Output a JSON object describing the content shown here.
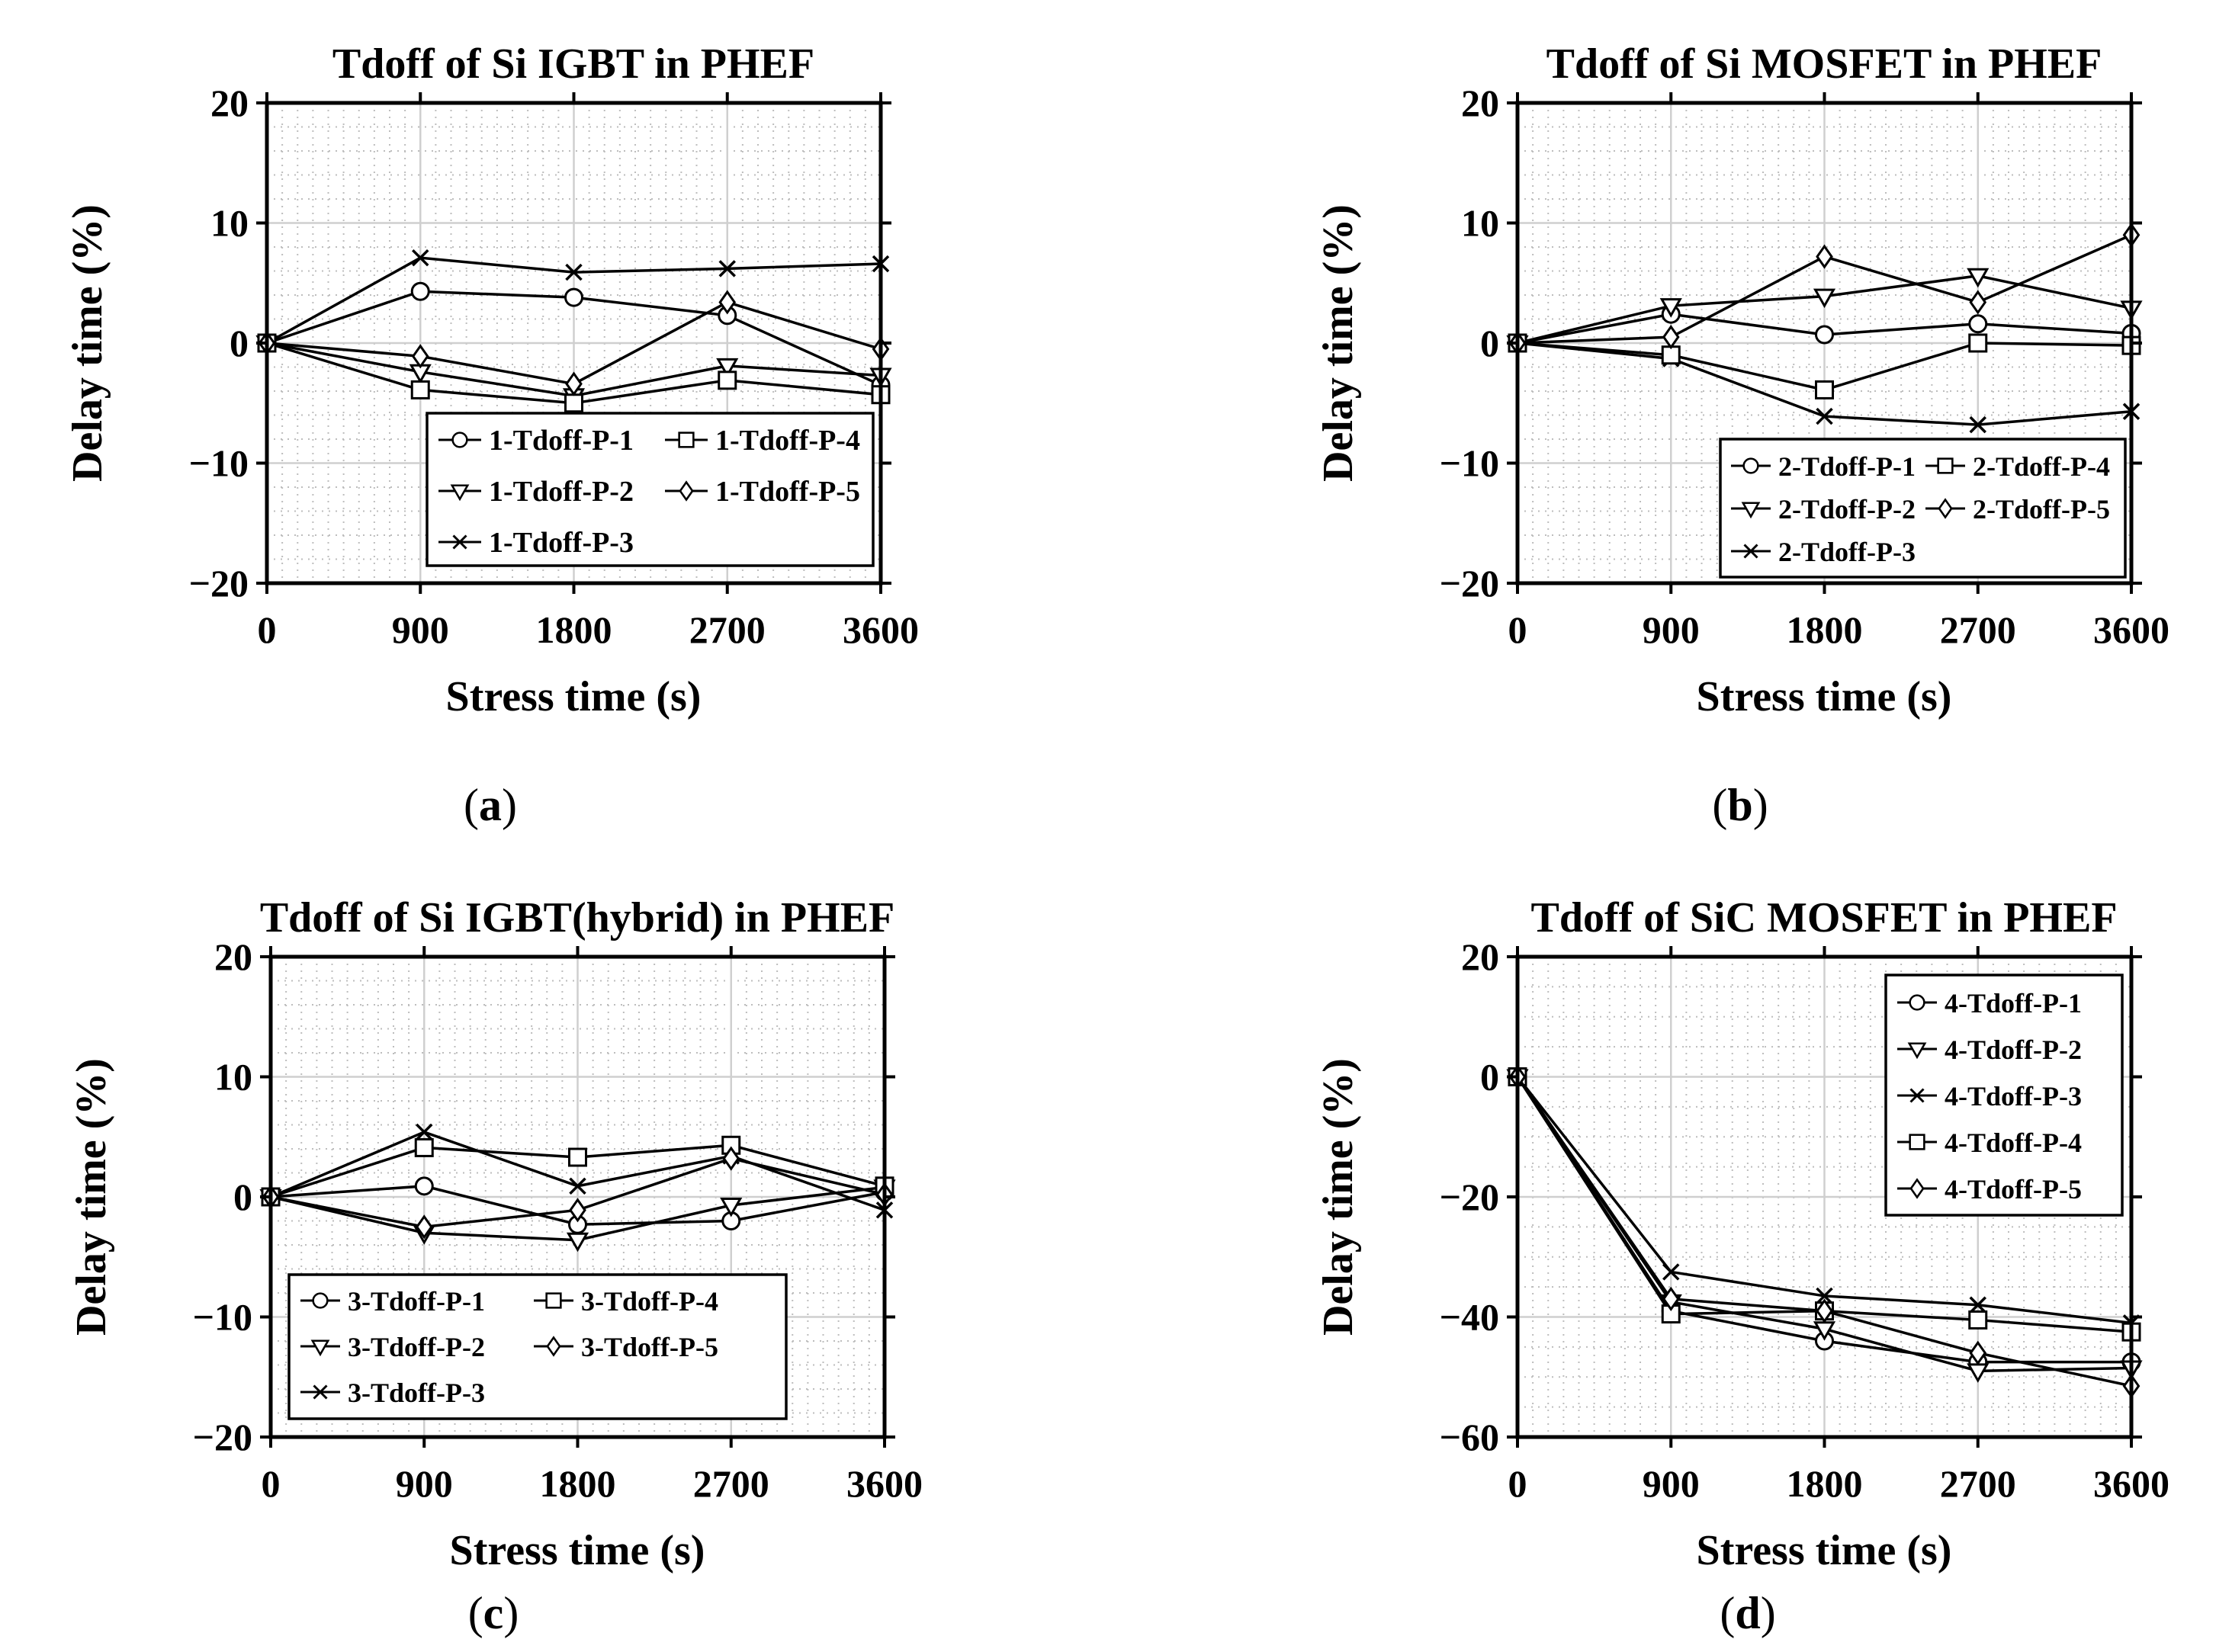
{
  "figure": {
    "background": "#ffffff",
    "ink": "#000000",
    "grid_minor_color": "#bdbdbd",
    "grid_major_color": "#cfcfcf"
  },
  "chart_data": [
    {
      "id": "a",
      "caption": "(a)",
      "type": "line",
      "title": "Tdoff of Si IGBT in PHEF",
      "xlabel": "Stress time (s)",
      "ylabel": "Delay time (%)",
      "x": [
        0,
        900,
        1800,
        2700,
        3600
      ],
      "xlim": [
        0,
        3600
      ],
      "ylim": [
        -20,
        20
      ],
      "xticks": [
        0,
        900,
        1800,
        2700,
        3600
      ],
      "yticks": [
        -20,
        -10,
        0,
        10,
        20
      ],
      "x_minor_step": 90,
      "y_minor_step": 2,
      "grid": "major+minor",
      "legend": {
        "position": "bottom-center",
        "columns": 2
      },
      "series": [
        {
          "name": "1-Tdoff-P-1",
          "marker": "circle",
          "values": [
            0,
            4.3,
            3.8,
            2.3,
            -3.5
          ]
        },
        {
          "name": "1-Tdoff-P-2",
          "marker": "triangle-down",
          "values": [
            0,
            -2.4,
            -4.4,
            -1.9,
            -2.7
          ]
        },
        {
          "name": "1-Tdoff-P-3",
          "marker": "x",
          "values": [
            0,
            7.1,
            5.9,
            6.2,
            6.6
          ]
        },
        {
          "name": "1-Tdoff-P-4",
          "marker": "square",
          "values": [
            0,
            -3.9,
            -5.0,
            -3.1,
            -4.3
          ]
        },
        {
          "name": "1-Tdoff-P-5",
          "marker": "diamond",
          "values": [
            0,
            -1.1,
            -3.4,
            3.4,
            -0.5
          ]
        }
      ]
    },
    {
      "id": "b",
      "caption": "(b)",
      "type": "line",
      "title": "Tdoff of Si MOSFET in PHEF",
      "xlabel": "Stress time (s)",
      "ylabel": "Delay time (%)",
      "x": [
        0,
        900,
        1800,
        2700,
        3600
      ],
      "xlim": [
        0,
        3600
      ],
      "ylim": [
        -20,
        20
      ],
      "xticks": [
        0,
        900,
        1800,
        2700,
        3600
      ],
      "yticks": [
        -20,
        -10,
        0,
        10,
        20
      ],
      "x_minor_step": 90,
      "y_minor_step": 2,
      "grid": "major+minor",
      "legend": {
        "position": "bottom-right",
        "columns": 2
      },
      "series": [
        {
          "name": "2-Tdoff-P-1",
          "marker": "circle",
          "values": [
            0,
            2.4,
            0.7,
            1.6,
            0.8
          ]
        },
        {
          "name": "2-Tdoff-P-2",
          "marker": "triangle-down",
          "values": [
            0,
            3.1,
            3.9,
            5.6,
            2.9
          ]
        },
        {
          "name": "2-Tdoff-P-3",
          "marker": "x",
          "values": [
            0,
            -1.3,
            -6.1,
            -6.8,
            -5.7
          ]
        },
        {
          "name": "2-Tdoff-P-4",
          "marker": "square",
          "values": [
            0,
            -1.0,
            -3.9,
            0.0,
            -0.2
          ]
        },
        {
          "name": "2-Tdoff-P-5",
          "marker": "diamond",
          "values": [
            0,
            0.5,
            7.2,
            3.4,
            9.0
          ]
        }
      ]
    },
    {
      "id": "c",
      "caption": "(c)",
      "type": "line",
      "title": "Tdoff of Si IGBT(hybrid) in PHEF",
      "xlabel": "Stress time (s)",
      "ylabel": "Delay time (%)",
      "x": [
        0,
        900,
        1800,
        2700,
        3600
      ],
      "xlim": [
        0,
        3600
      ],
      "ylim": [
        -20,
        20
      ],
      "xticks": [
        0,
        900,
        1800,
        2700,
        3600
      ],
      "yticks": [
        -20,
        -10,
        0,
        10,
        20
      ],
      "x_minor_step": 90,
      "y_minor_step": 2,
      "grid": "major+minor",
      "legend": {
        "position": "bottom-left",
        "columns": 2
      },
      "series": [
        {
          "name": "3-Tdoff-P-1",
          "marker": "circle",
          "values": [
            0,
            0.9,
            -2.3,
            -2.0,
            0.4
          ]
        },
        {
          "name": "3-Tdoff-P-2",
          "marker": "triangle-down",
          "values": [
            0,
            -3.0,
            -3.6,
            -0.7,
            0.8
          ]
        },
        {
          "name": "3-Tdoff-P-3",
          "marker": "x",
          "values": [
            0,
            5.4,
            0.9,
            3.4,
            -1.1
          ]
        },
        {
          "name": "3-Tdoff-P-4",
          "marker": "square",
          "values": [
            0,
            4.1,
            3.3,
            4.3,
            0.9
          ]
        },
        {
          "name": "3-Tdoff-P-5",
          "marker": "diamond",
          "values": [
            0,
            -2.5,
            -1.1,
            3.2,
            0.2
          ]
        }
      ]
    },
    {
      "id": "d",
      "caption": "(d)",
      "type": "line",
      "title": "Tdoff of SiC MOSFET in PHEF",
      "xlabel": "Stress time (s)",
      "ylabel": "Delay time (%)",
      "x": [
        0,
        900,
        1800,
        2700,
        3600
      ],
      "xlim": [
        0,
        3600
      ],
      "ylim": [
        -60,
        20
      ],
      "xticks": [
        0,
        900,
        1800,
        2700,
        3600
      ],
      "yticks": [
        -60,
        -40,
        -20,
        0,
        20
      ],
      "x_minor_step": 90,
      "y_minor_step": 5,
      "grid": "major+minor",
      "legend": {
        "position": "top-right",
        "columns": 1
      },
      "series": [
        {
          "name": "4-Tdoff-P-1",
          "marker": "circle",
          "values": [
            0,
            -39.0,
            -44.0,
            -47.5,
            -47.5
          ]
        },
        {
          "name": "4-Tdoff-P-2",
          "marker": "triangle-down",
          "values": [
            0,
            -37.5,
            -42.0,
            -49.0,
            -48.5
          ]
        },
        {
          "name": "4-Tdoff-P-3",
          "marker": "x",
          "values": [
            0,
            -32.5,
            -36.5,
            -38.0,
            -41.0
          ]
        },
        {
          "name": "4-Tdoff-P-4",
          "marker": "square",
          "values": [
            0,
            -39.5,
            -39.0,
            -40.5,
            -42.5
          ]
        },
        {
          "name": "4-Tdoff-P-5",
          "marker": "diamond",
          "values": [
            0,
            -37.0,
            -39.0,
            -46.0,
            -51.5
          ]
        }
      ]
    }
  ]
}
